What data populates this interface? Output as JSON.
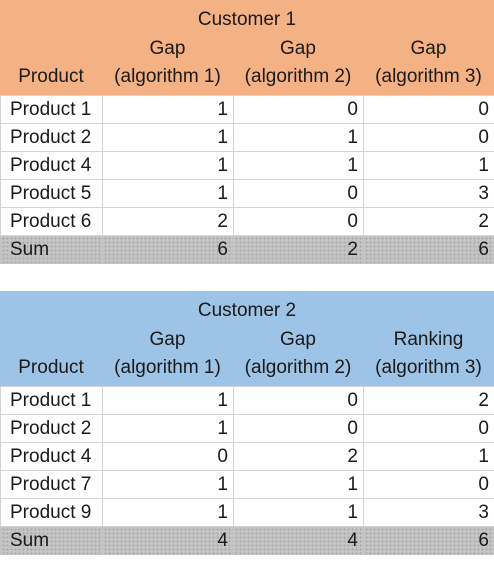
{
  "tables": [
    {
      "title": "Customer 1",
      "columns": [
        {
          "top": "",
          "bottom": "Product"
        },
        {
          "top": "Gap",
          "bottom": "(algorithm 1)"
        },
        {
          "top": "Gap",
          "bottom": "(algorithm 2)"
        },
        {
          "top": "Gap",
          "bottom": "(algorithm 3)"
        }
      ],
      "rows": [
        [
          "Product 1",
          "1",
          "0",
          "0"
        ],
        [
          "Product 2",
          "1",
          "1",
          "0"
        ],
        [
          "Product 4",
          "1",
          "1",
          "1"
        ],
        [
          "Product 5",
          "1",
          "0",
          "3"
        ],
        [
          "Product 6",
          "2",
          "0",
          "2"
        ]
      ],
      "sum": [
        "Sum",
        "6",
        "2",
        "6"
      ],
      "header_color": "#f4b183"
    },
    {
      "title": "Customer 2",
      "columns": [
        {
          "top": "",
          "bottom": "Product"
        },
        {
          "top": "Gap",
          "bottom": "(algorithm 1)"
        },
        {
          "top": "Gap",
          "bottom": "(algorithm 2)"
        },
        {
          "top": "Ranking",
          "bottom": "(algorithm 3)"
        }
      ],
      "rows": [
        [
          "Product 1",
          "1",
          "0",
          "2"
        ],
        [
          "Product 2",
          "1",
          "0",
          "0"
        ],
        [
          "Product 4",
          "0",
          "2",
          "1"
        ],
        [
          "Product 7",
          "1",
          "1",
          "0"
        ],
        [
          "Product 9",
          "1",
          "1",
          "3"
        ]
      ],
      "sum": [
        "Sum",
        "4",
        "4",
        "6"
      ],
      "header_color": "#9dc3e6"
    }
  ]
}
